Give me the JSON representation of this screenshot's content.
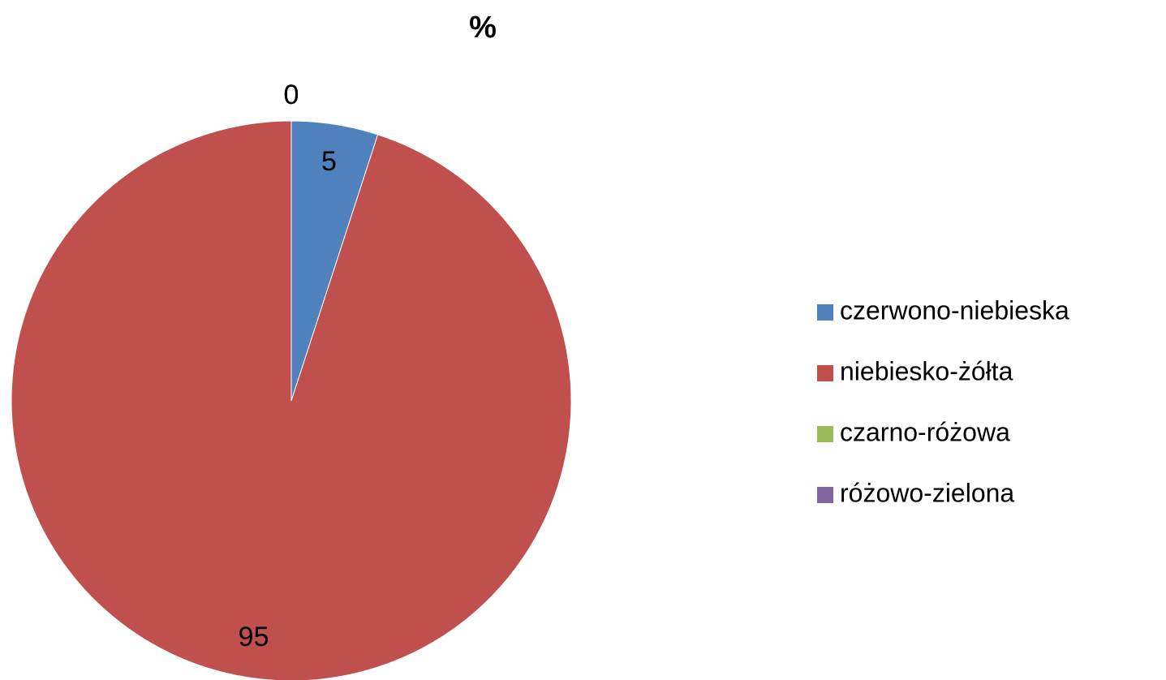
{
  "chart_data": {
    "type": "pie",
    "title": "%",
    "categories": [
      "czerwono-niebieska",
      "niebiesko-żółta",
      "czarno-różowa",
      "różowo-zielona"
    ],
    "values": [
      5,
      95,
      0,
      0
    ],
    "colors": [
      "#4f81bd",
      "#c0504d",
      "#9bbb59",
      "#8064a2"
    ],
    "legend": "right"
  }
}
